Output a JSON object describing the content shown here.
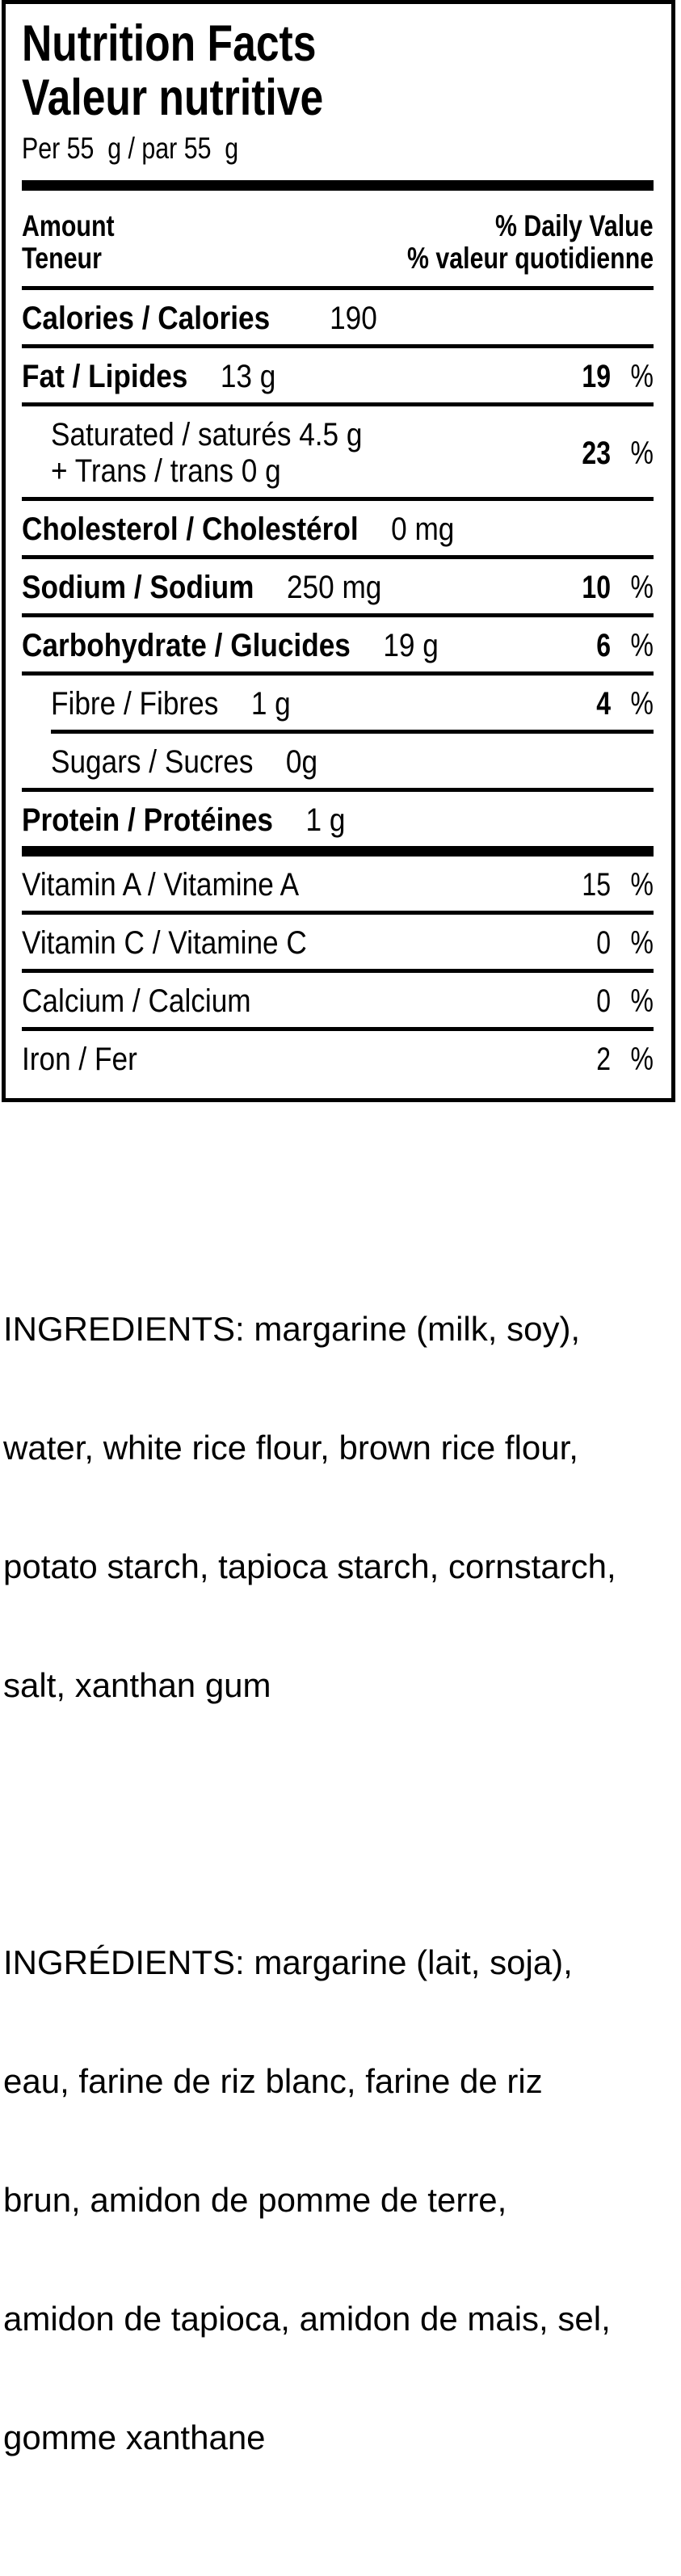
{
  "percent_sign": "%",
  "colors": {
    "text": "#000000",
    "background": "#ffffff",
    "border": "#000000"
  },
  "label": {
    "title_en": "Nutrition Facts",
    "title_fr": "Valeur nutritive",
    "serving": "Per 55  g / par 55  g",
    "column_header": {
      "amount_en": "Amount",
      "amount_fr": "Teneur",
      "daily_value_en": "% Daily Value",
      "daily_value_fr": "% valeur quotidienne"
    },
    "rows": [
      {
        "name": "Calories / Calories",
        "amount": "190"
      },
      {
        "name": "Fat / Lipides",
        "amount": "13 g",
        "dv": "19"
      },
      {
        "name": "Saturated / saturés 4.5 g",
        "name2": "+ Trans / trans 0 g",
        "dv": "23"
      },
      {
        "name": "Cholesterol / Cholestérol",
        "amount": "0 mg"
      },
      {
        "name": "Sodium / Sodium",
        "amount": "250 mg",
        "dv": "10"
      },
      {
        "name": "Carbohydrate / Glucides",
        "amount": "19 g",
        "dv": "6"
      },
      {
        "name": "Fibre / Fibres",
        "amount": "1 g",
        "dv": "4"
      },
      {
        "name": "Sugars / Sucres",
        "amount": "0g"
      },
      {
        "name": "Protein / Protéines",
        "amount": "1 g"
      }
    ],
    "micronutrients": [
      {
        "name": "Vitamin A / Vitamine A",
        "dv": "15"
      },
      {
        "name": "Vitamin C / Vitamine C",
        "dv": "0"
      },
      {
        "name": "Calcium / Calcium",
        "dv": "0"
      },
      {
        "name": "Iron / Fer",
        "dv": "2"
      }
    ]
  },
  "ingredients": {
    "en_lines": [
      "INGREDIENTS: margarine (milk, soy),",
      "water, white rice flour, brown rice flour,",
      "potato starch, tapioca starch, cornstarch,",
      "salt, xanthan gum"
    ],
    "fr_lines": [
      "INGRÉDIENTS: margarine (lait, soja),",
      "eau, farine de riz blanc, farine de riz",
      "brun, amidon de pomme de terre,",
      "amidon de tapioca, amidon de mais, sel,",
      "gomme xanthane"
    ]
  }
}
